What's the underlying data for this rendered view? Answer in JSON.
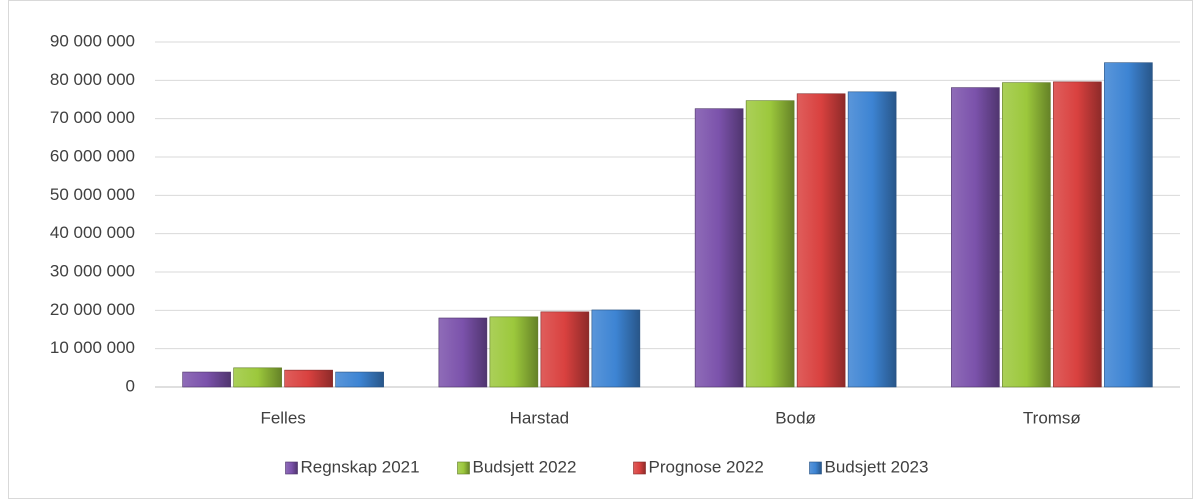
{
  "chart_data": {
    "type": "bar",
    "categories": [
      "Felles",
      "Harstad",
      "Bodø",
      "Tromsø"
    ],
    "series": [
      {
        "name": "Regnskap 2021",
        "color": "#7b52ab",
        "values": [
          3900000,
          18000000,
          72600000,
          78100000
        ]
      },
      {
        "name": "Budsjett 2022",
        "color": "#9cc83c",
        "values": [
          5000000,
          18300000,
          74700000,
          79400000
        ]
      },
      {
        "name": "Prognose 2022",
        "color": "#d9413f",
        "values": [
          4400000,
          19600000,
          76500000,
          79600000
        ]
      },
      {
        "name": "Budsjett 2023",
        "color": "#3d84d3",
        "values": [
          3900000,
          20100000,
          77000000,
          84600000
        ]
      }
    ],
    "ylim": [
      0,
      90000000
    ],
    "yticks": [
      0,
      {
        "value": 10000000,
        "label": "10 000 000"
      },
      {
        "value": 20000000,
        "label": "20 000 000"
      },
      {
        "value": 30000000,
        "label": "30 000 000"
      },
      {
        "value": 40000000,
        "label": "40 000 000"
      },
      {
        "value": 50000000,
        "label": "50 000 000"
      },
      {
        "value": 60000000,
        "label": "60 000 000"
      },
      {
        "value": 70000000,
        "label": "70 000 000"
      },
      {
        "value": 80000000,
        "label": "80 000 000"
      },
      {
        "value": 90000000,
        "label": "90 000 000"
      }
    ],
    "grid": true,
    "legend": "bottom"
  }
}
